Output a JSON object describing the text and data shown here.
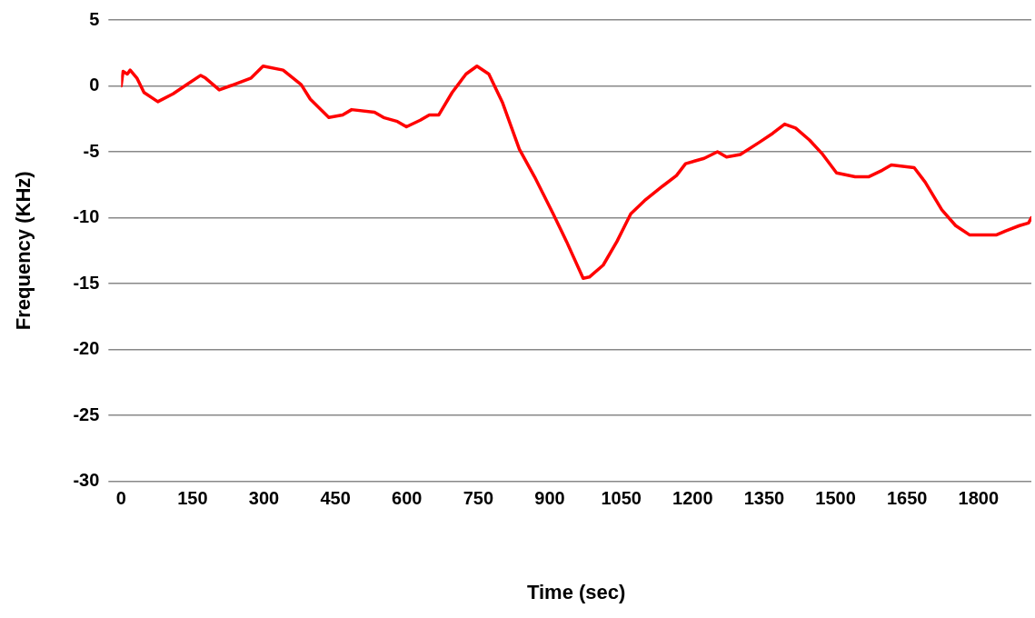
{
  "chart_data": {
    "type": "line",
    "xlabel": "Time (sec)",
    "ylabel": "Frequency (KHz)",
    "xlim": [
      0,
      1911
    ],
    "xticks": [
      0,
      150,
      300,
      450,
      600,
      750,
      900,
      1050,
      1200,
      1350,
      1500,
      1650,
      1800
    ],
    "ylim": [
      -30,
      5
    ],
    "yticks": [
      -30,
      -25,
      -20,
      -15,
      -10,
      -5,
      0,
      5
    ],
    "grid": "y",
    "marker": "none",
    "line_style": "solid",
    "legend": false,
    "series": [
      {
        "color": "#ff0000",
        "x": [
          0,
          4,
          13,
          19,
          33,
          48,
          77,
          109,
          138,
          167,
          177,
          206,
          229,
          273,
          298,
          340,
          378,
          397,
          436,
          465,
          484,
          532,
          551,
          580,
          599,
          628,
          647,
          667,
          695,
          724,
          747,
          772,
          801,
          836,
          868,
          907,
          935,
          970,
          983,
          1012,
          1041,
          1070,
          1099,
          1137,
          1166,
          1185,
          1224,
          1252,
          1271,
          1300,
          1339,
          1368,
          1393,
          1416,
          1445,
          1473,
          1502,
          1541,
          1569,
          1598,
          1617,
          1665,
          1688,
          1723,
          1752,
          1781,
          1819,
          1838,
          1857,
          1886,
          1905,
          1911
        ],
        "values": [
          0,
          1.1,
          0.9,
          1.2,
          0.6,
          -0.5,
          -1.2,
          -0.6,
          0.1,
          0.8,
          0.6,
          -0.3,
          0,
          0.6,
          1.5,
          1.2,
          0.1,
          -1.0,
          -2.4,
          -2.2,
          -1.8,
          -2.0,
          -2.4,
          -2.7,
          -3.1,
          -2.6,
          -2.2,
          -2.2,
          -0.5,
          0.9,
          1.5,
          0.9,
          -1.3,
          -4.8,
          -6.9,
          -9.7,
          -11.8,
          -14.6,
          -14.5,
          -13.6,
          -11.8,
          -9.7,
          -8.7,
          -7.6,
          -6.8,
          -5.9,
          -5.5,
          -5.0,
          -5.4,
          -5.2,
          -4.3,
          -3.6,
          -2.9,
          -3.2,
          -4.1,
          -5.2,
          -6.6,
          -6.9,
          -6.9,
          -6.4,
          -6.0,
          -6.2,
          -7.3,
          -9.4,
          -10.6,
          -11.3,
          -11.3,
          -11.3,
          -11.0,
          -10.6,
          -10.4,
          -10.0
        ]
      }
    ]
  }
}
